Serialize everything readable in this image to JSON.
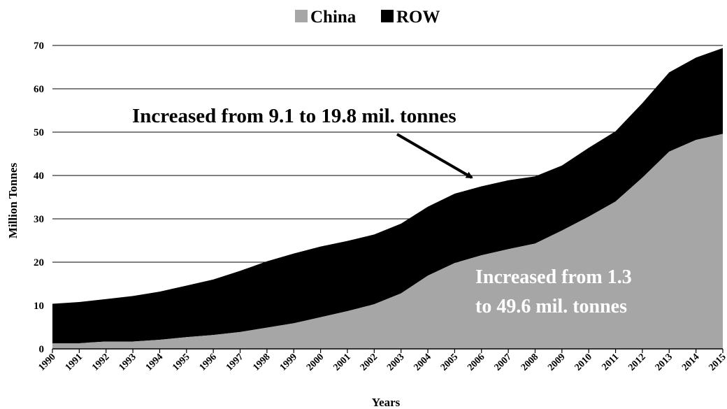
{
  "chart_data": {
    "type": "area",
    "stacked": true,
    "xlabel": "Years",
    "ylabel": "Million Tonnes",
    "ylim": [
      0,
      70
    ],
    "yticks": [
      0,
      10,
      20,
      30,
      40,
      50,
      60,
      70
    ],
    "grid": true,
    "legend_position": "top-center",
    "categories": [
      "1990",
      "1991",
      "1992",
      "1993",
      "1994",
      "1995",
      "1996",
      "1997",
      "1998",
      "1999",
      "2000",
      "2001",
      "2002",
      "2003",
      "2004",
      "2005",
      "2006",
      "2007",
      "2008",
      "2009",
      "2010",
      "2011",
      "2012",
      "2013",
      "2014",
      "2015"
    ],
    "series": [
      {
        "name": "China",
        "color": "#a6a6a6",
        "values": [
          1.3,
          1.3,
          1.7,
          1.7,
          2.1,
          2.7,
          3.2,
          3.9,
          4.9,
          5.9,
          7.3,
          8.7,
          10.3,
          12.8,
          16.9,
          19.8,
          21.6,
          23.0,
          24.3,
          27.3,
          30.5,
          34.0,
          39.5,
          45.5,
          48.2,
          49.6
        ]
      },
      {
        "name": "ROW",
        "color": "#000000",
        "values": [
          9.1,
          9.5,
          9.8,
          10.5,
          11.1,
          11.9,
          12.8,
          14.1,
          15.3,
          16.1,
          16.3,
          16.2,
          16.1,
          16.1,
          15.9,
          16.0,
          15.9,
          15.9,
          15.5,
          15.0,
          15.9,
          16.2,
          17.2,
          18.3,
          19.0,
          19.8
        ]
      }
    ],
    "annotations": [
      {
        "text": "Increased from 9.1 to 19.8 mil. tonnes",
        "arrow_to": {
          "year": "2006",
          "value": 38.5
        }
      },
      {
        "line1": "Increased from 1.3",
        "line2": "to 49.6 mil. tonnes"
      }
    ]
  }
}
